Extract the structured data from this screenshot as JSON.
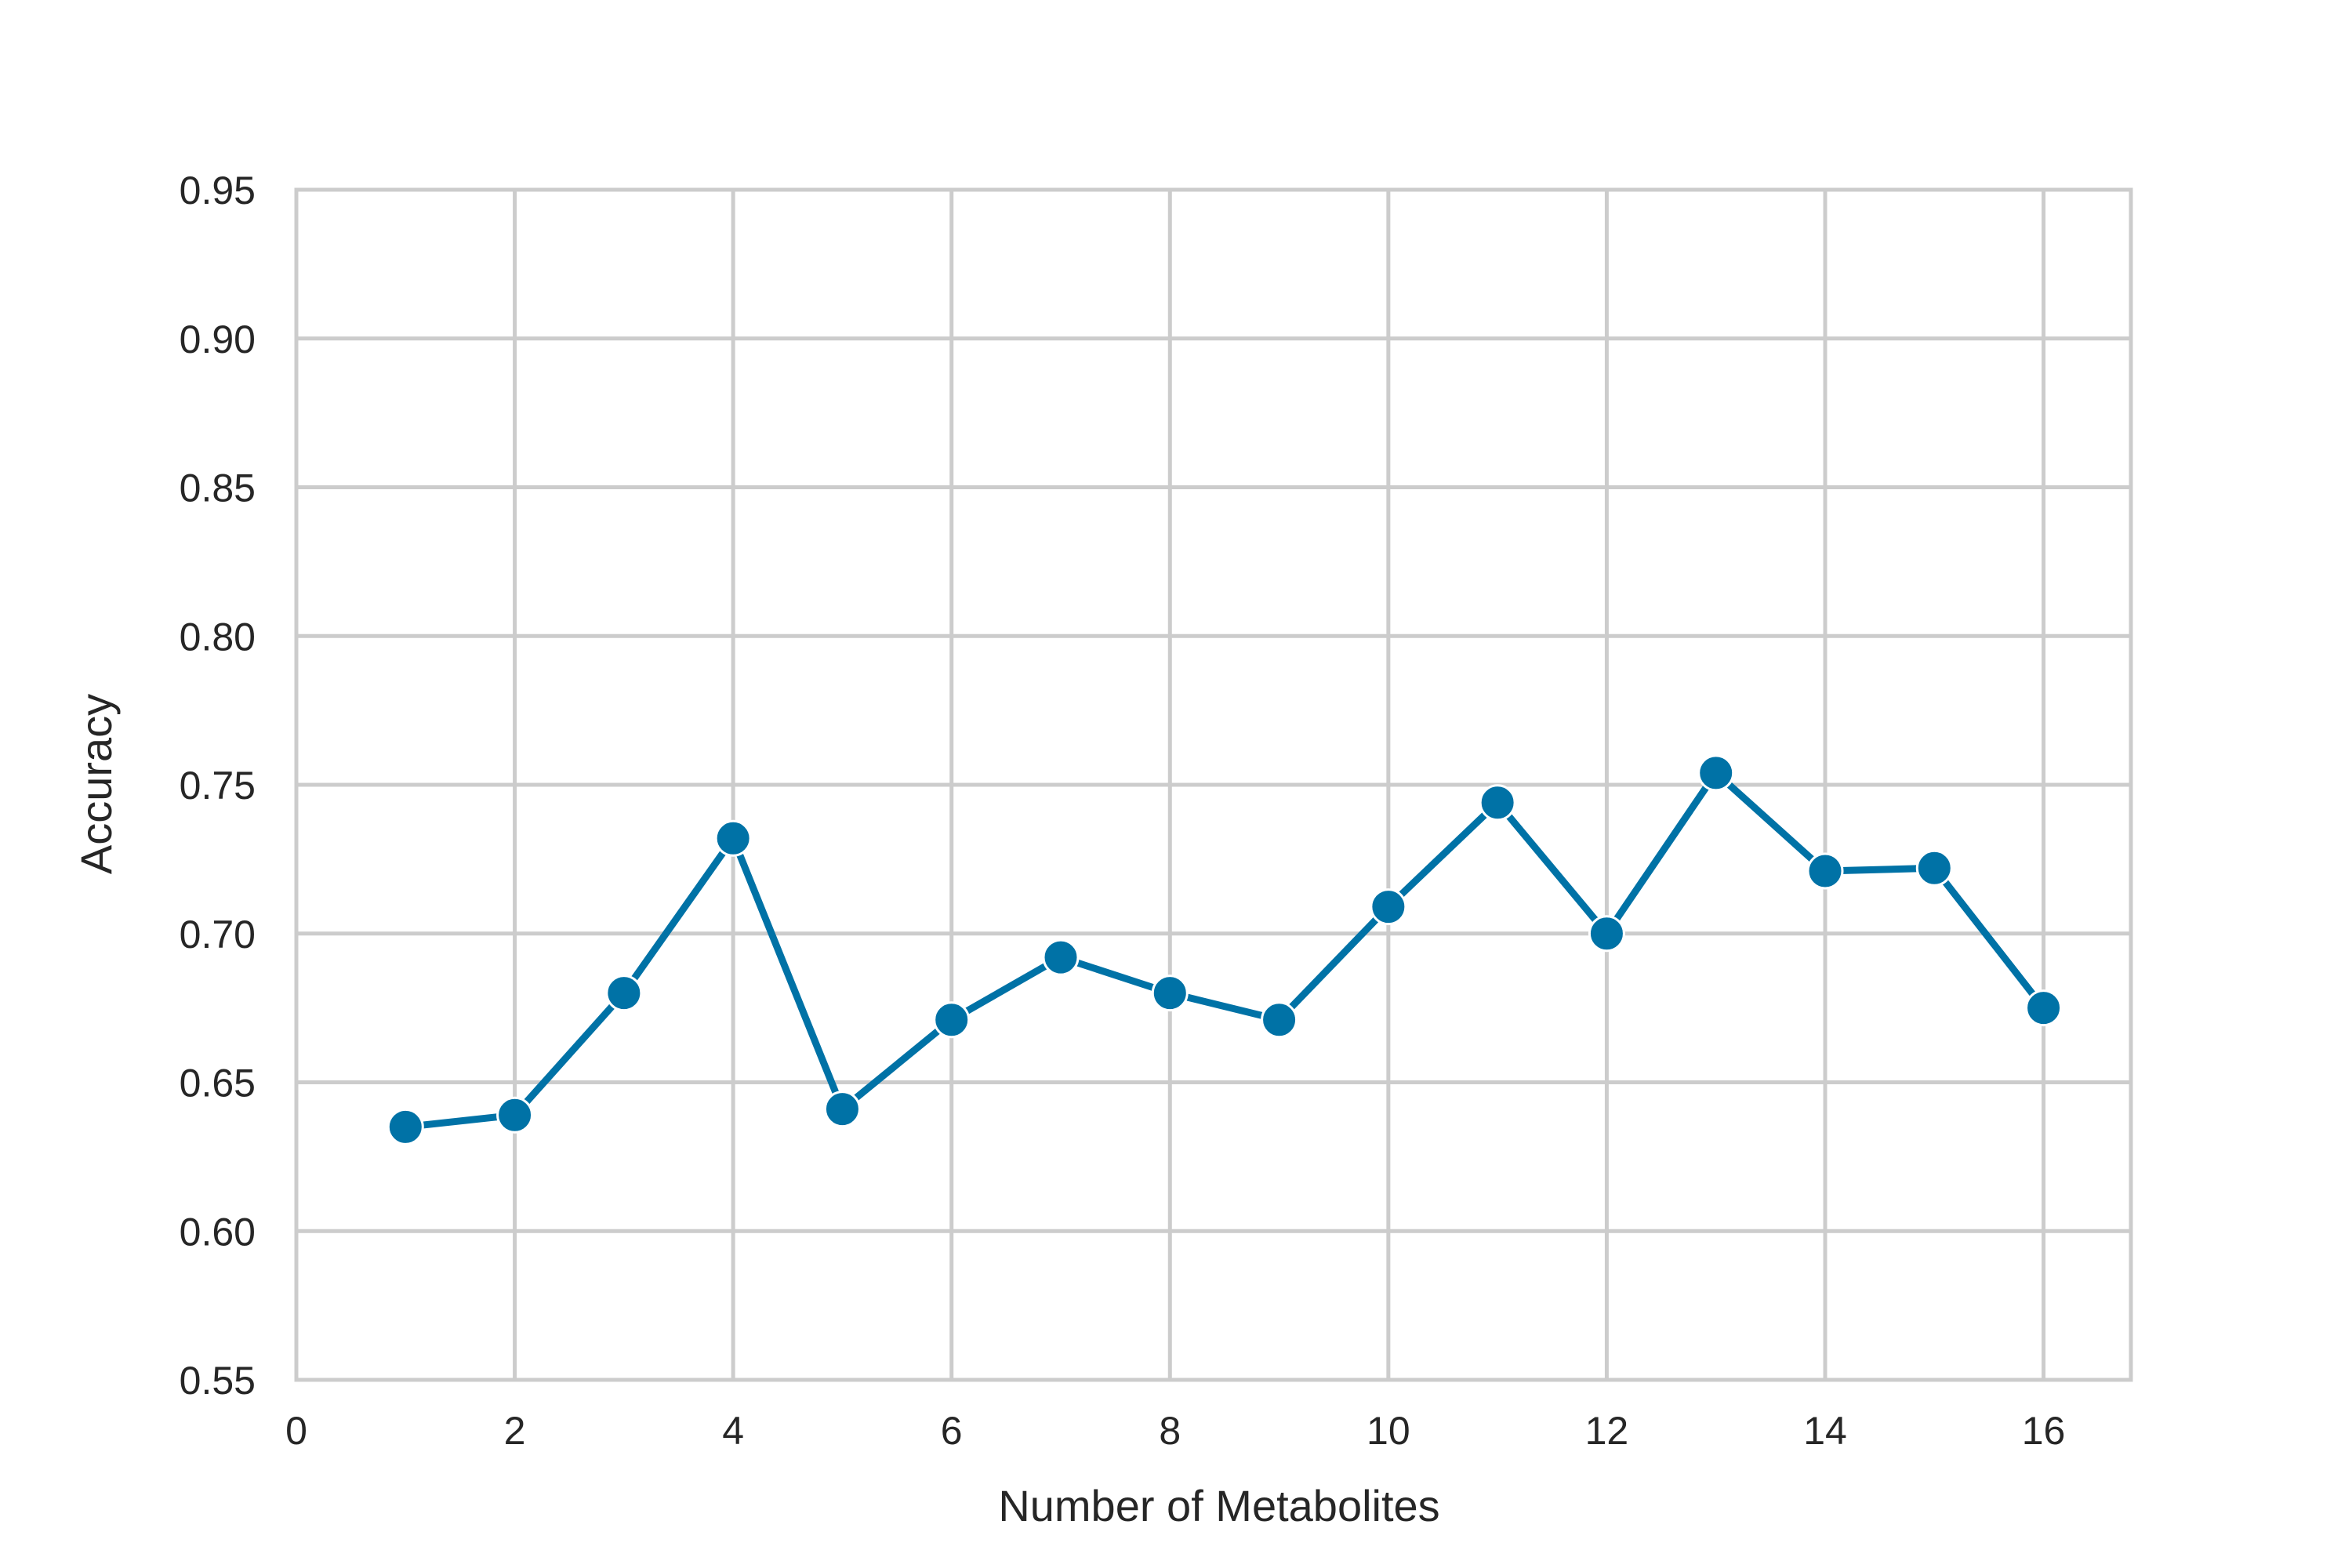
{
  "colors": {
    "line": "#0072a6",
    "grid": "#cccccc",
    "text": "#262626",
    "background": "#ffffff"
  },
  "chart_data": {
    "type": "line",
    "xlabel": "Number of Metabolites",
    "ylabel": "Accuracy",
    "xlim": [
      0,
      16.8
    ],
    "ylim": [
      0.55,
      0.95
    ],
    "xticks": [
      0,
      2,
      4,
      6,
      8,
      10,
      12,
      14,
      16
    ],
    "xtick_labels": [
      "0",
      "2",
      "4",
      "6",
      "8",
      "10",
      "12",
      "14",
      "16"
    ],
    "yticks": [
      0.55,
      0.6,
      0.65,
      0.7,
      0.75,
      0.8,
      0.85,
      0.9,
      0.95
    ],
    "ytick_labels": [
      "0.55",
      "0.60",
      "0.65",
      "0.70",
      "0.75",
      "0.80",
      "0.85",
      "0.90",
      "0.95"
    ],
    "grid": true,
    "series": [
      {
        "marker": "circle",
        "x": [
          1,
          2,
          3,
          4,
          5,
          6,
          7,
          8,
          9,
          10,
          11,
          12,
          13,
          14,
          15,
          16
        ],
        "y": [
          0.635,
          0.639,
          0.68,
          0.732,
          0.641,
          0.671,
          0.692,
          0.68,
          0.671,
          0.709,
          0.744,
          0.7,
          0.754,
          0.721,
          0.722,
          0.675
        ]
      }
    ]
  }
}
